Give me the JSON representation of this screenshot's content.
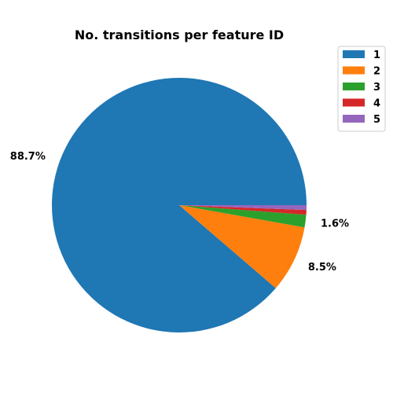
{
  "chart_data": {
    "type": "pie",
    "title": "No. transitions per feature ID",
    "start_angle_deg": 0,
    "direction": "counterclockwise",
    "slices": [
      {
        "label": "1",
        "value": 88.7,
        "pct_label": "88.7%",
        "color": "#1f77b4"
      },
      {
        "label": "2",
        "value": 8.5,
        "pct_label": "8.5%",
        "color": "#ff7f0e"
      },
      {
        "label": "3",
        "value": 1.6,
        "pct_label": "1.6%",
        "color": "#2ca02c"
      },
      {
        "label": "4",
        "value": 0.6,
        "pct_label": "",
        "color": "#d62728"
      },
      {
        "label": "5",
        "value": 0.6,
        "pct_label": "",
        "color": "#9467bd"
      }
    ],
    "legend": {
      "placement": "top-right",
      "entries": [
        "1",
        "2",
        "3",
        "4",
        "5"
      ]
    }
  }
}
